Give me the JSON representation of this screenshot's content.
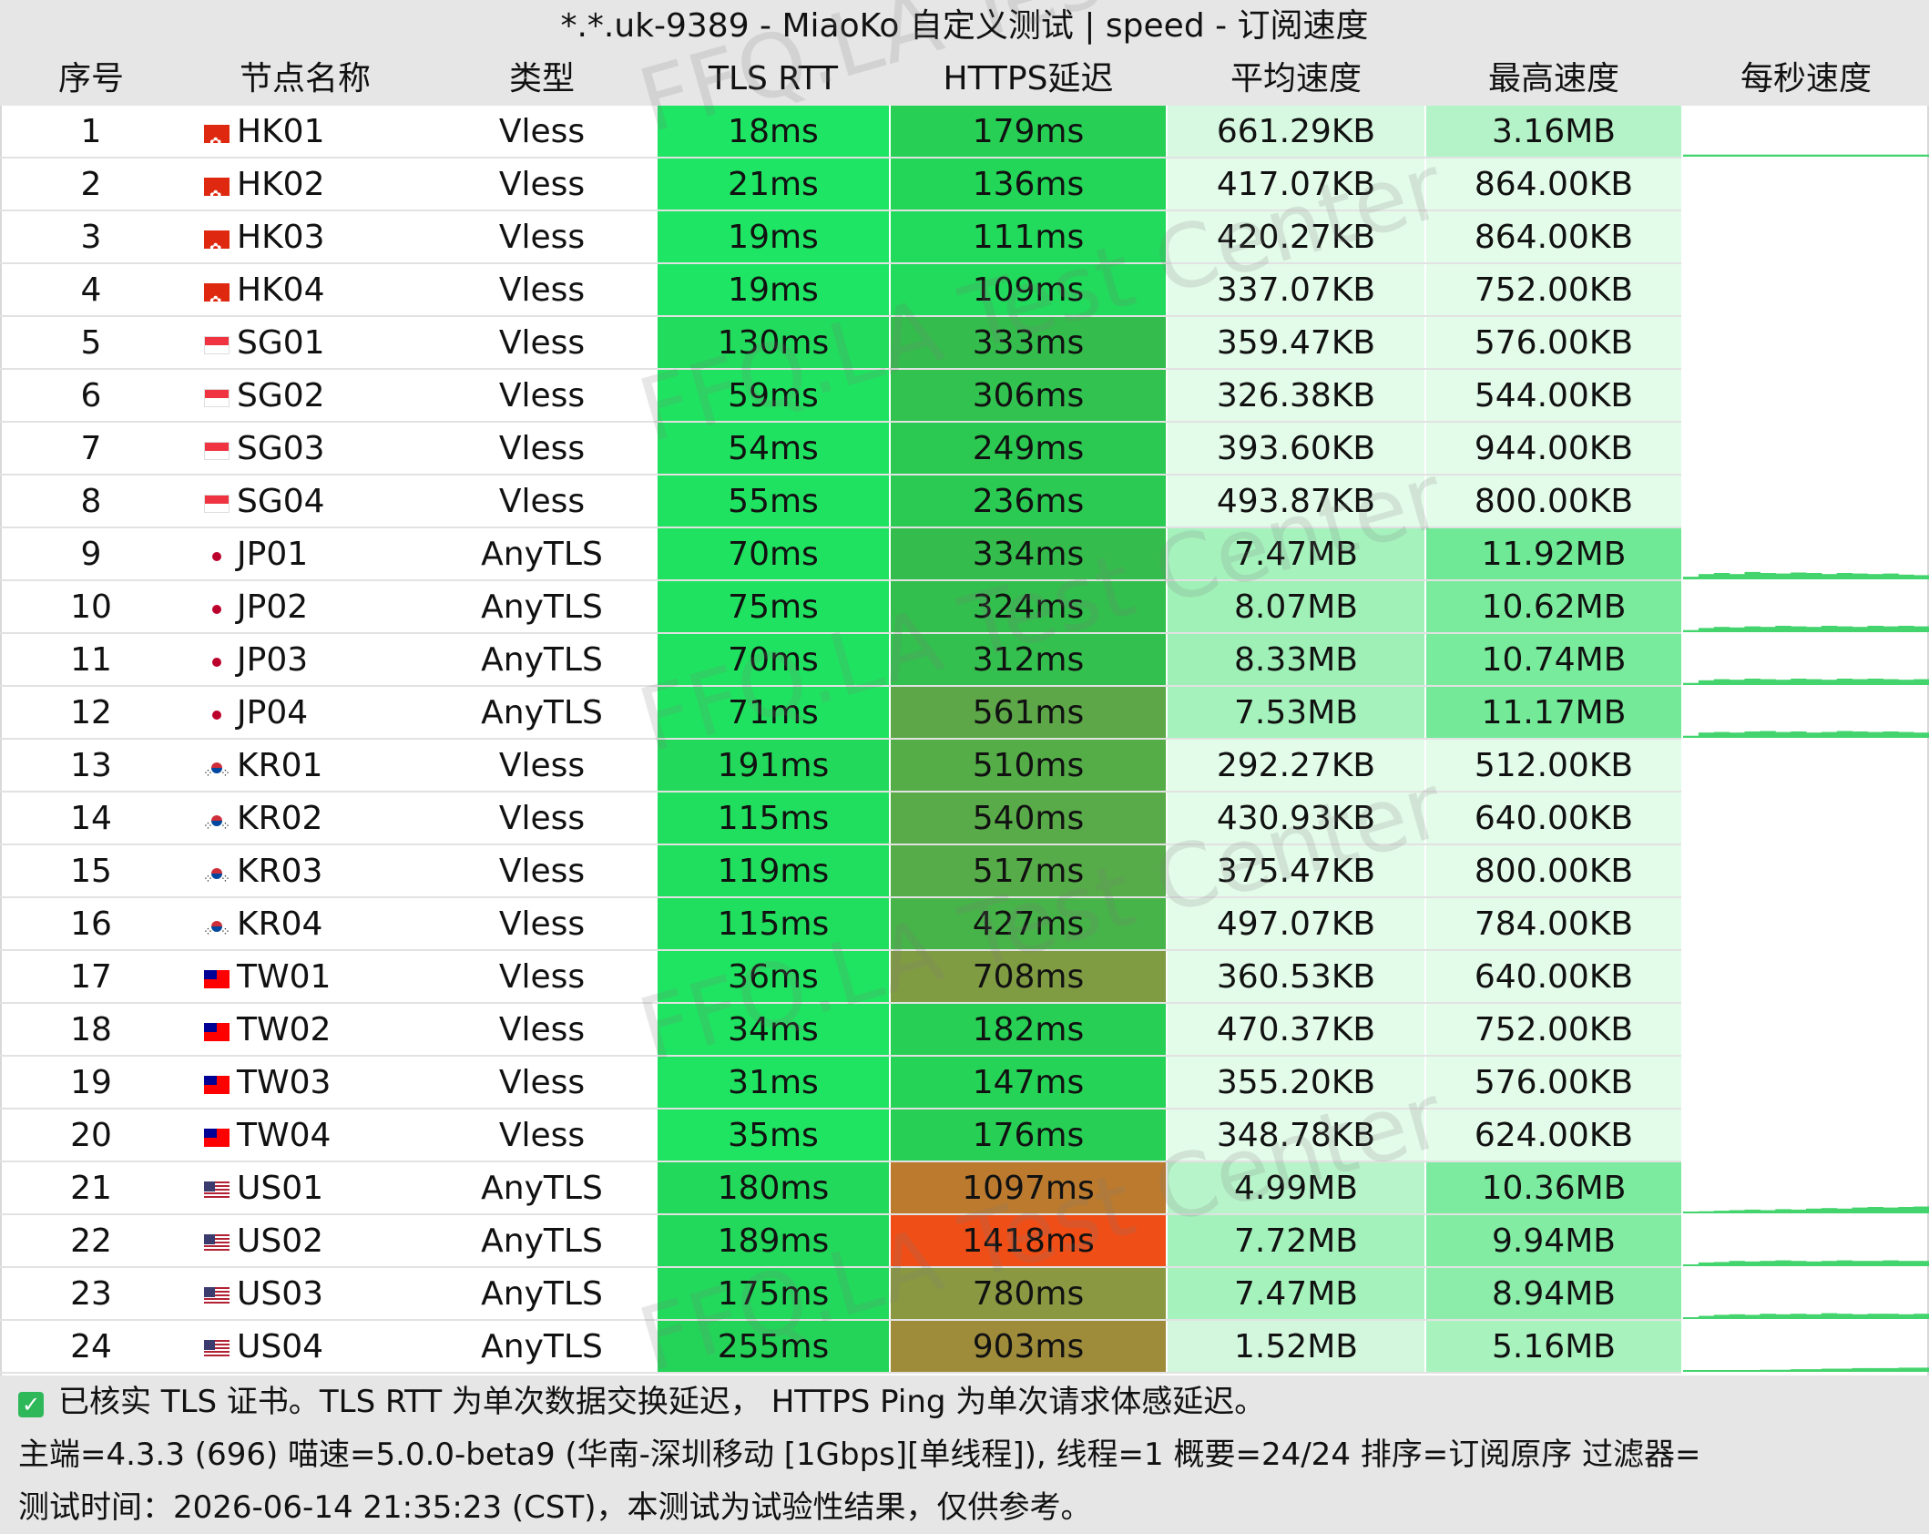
{
  "title": "*.*.uk-9389 - MiaoKo 自定义测试 | speed - 订阅速度",
  "columns": [
    "序号",
    "节点名称",
    "类型",
    "TLS RTT",
    "HTTPS延迟",
    "平均速度",
    "最高速度",
    "每秒速度"
  ],
  "rows": [
    {
      "idx": "1",
      "flag": "hk",
      "name": "HK01",
      "type": "Vless",
      "tls": "18ms",
      "https": "179ms",
      "avg": "661.29KB",
      "max": "3.16MB",
      "tls_color": "#1ee563",
      "https_color": "#27cf55",
      "avg_color": "#d7f8e1",
      "max_color": "#b3f3c7",
      "spark": [
        0.04
      ]
    },
    {
      "idx": "2",
      "flag": "hk",
      "name": "HK02",
      "type": "Vless",
      "tls": "21ms",
      "https": "136ms",
      "avg": "417.07KB",
      "max": "864.00KB",
      "tls_color": "#1ee563",
      "https_color": "#24d658",
      "avg_color": "#e3fbe9",
      "max_color": "#e3fbe9",
      "spark": []
    },
    {
      "idx": "3",
      "flag": "hk",
      "name": "HK03",
      "type": "Vless",
      "tls": "19ms",
      "https": "111ms",
      "avg": "420.27KB",
      "max": "864.00KB",
      "tls_color": "#1ee563",
      "https_color": "#22da5b",
      "avg_color": "#e3fbe9",
      "max_color": "#e3fbe9",
      "spark": []
    },
    {
      "idx": "4",
      "flag": "hk",
      "name": "HK04",
      "type": "Vless",
      "tls": "19ms",
      "https": "109ms",
      "avg": "337.07KB",
      "max": "752.00KB",
      "tls_color": "#1ee563",
      "https_color": "#22da5b",
      "avg_color": "#e3fbe9",
      "max_color": "#e3fbe9",
      "spark": []
    },
    {
      "idx": "5",
      "flag": "sg",
      "name": "SG01",
      "type": "Vless",
      "tls": "130ms",
      "https": "333ms",
      "avg": "359.47KB",
      "max": "576.00KB",
      "tls_color": "#21dc5d",
      "https_color": "#34bd4c",
      "avg_color": "#e3fbe9",
      "max_color": "#e3fbe9",
      "spark": []
    },
    {
      "idx": "6",
      "flag": "sg",
      "name": "SG02",
      "type": "Vless",
      "tls": "59ms",
      "https": "306ms",
      "avg": "326.38KB",
      "max": "544.00KB",
      "tls_color": "#1fe360",
      "https_color": "#32c24f",
      "avg_color": "#e3fbe9",
      "max_color": "#e3fbe9",
      "spark": []
    },
    {
      "idx": "7",
      "flag": "sg",
      "name": "SG03",
      "type": "Vless",
      "tls": "54ms",
      "https": "249ms",
      "avg": "393.60KB",
      "max": "944.00KB",
      "tls_color": "#1fe360",
      "https_color": "#2cc952",
      "avg_color": "#e3fbe9",
      "max_color": "#e3fbe9",
      "spark": []
    },
    {
      "idx": "8",
      "flag": "sg",
      "name": "SG04",
      "type": "Vless",
      "tls": "55ms",
      "https": "236ms",
      "avg": "493.87KB",
      "max": "800.00KB",
      "tls_color": "#1fe360",
      "https_color": "#2bca53",
      "avg_color": "#e3fbe9",
      "max_color": "#e3fbe9",
      "spark": []
    },
    {
      "idx": "9",
      "flag": "jp",
      "name": "JP01",
      "type": "AnyTLS",
      "tls": "70ms",
      "https": "334ms",
      "avg": "7.47MB",
      "max": "11.92MB",
      "tls_color": "#1fe360",
      "https_color": "#34bd4c",
      "avg_color": "#a6f2bd",
      "max_color": "#6fe995",
      "spark": [
        0.05,
        0.1,
        0.12,
        0.1,
        0.14,
        0.12,
        0.11,
        0.13,
        0.12,
        0.1,
        0.12,
        0.11,
        0.1,
        0.11,
        0.09,
        0.08
      ]
    },
    {
      "idx": "10",
      "flag": "jp",
      "name": "JP02",
      "type": "AnyTLS",
      "tls": "75ms",
      "https": "324ms",
      "avg": "8.07MB",
      "max": "10.62MB",
      "tls_color": "#1fe360",
      "https_color": "#33bf4d",
      "avg_color": "#a0f1b8",
      "max_color": "#7aeb9d",
      "spark": [
        0.04,
        0.08,
        0.1,
        0.09,
        0.11,
        0.1,
        0.12,
        0.11,
        0.1,
        0.12,
        0.11,
        0.1,
        0.12,
        0.11,
        0.12,
        0.11
      ]
    },
    {
      "idx": "11",
      "flag": "jp",
      "name": "JP03",
      "type": "AnyTLS",
      "tls": "70ms",
      "https": "312ms",
      "avg": "8.33MB",
      "max": "10.74MB",
      "tls_color": "#1fe360",
      "https_color": "#33c04e",
      "avg_color": "#9ef0b7",
      "max_color": "#79eb9c",
      "spark": [
        0.04,
        0.09,
        0.11,
        0.1,
        0.12,
        0.11,
        0.1,
        0.12,
        0.11,
        0.1,
        0.12,
        0.11,
        0.12,
        0.11,
        0.1,
        0.11
      ]
    },
    {
      "idx": "12",
      "flag": "jp",
      "name": "JP04",
      "type": "AnyTLS",
      "tls": "71ms",
      "https": "561ms",
      "avg": "7.53MB",
      "max": "11.17MB",
      "tls_color": "#1fe360",
      "https_color": "#5da748",
      "avg_color": "#a5f2bd",
      "max_color": "#74ea99",
      "spark": [
        0.04,
        0.1,
        0.11,
        0.1,
        0.12,
        0.13,
        0.11,
        0.12,
        0.1,
        0.11,
        0.13,
        0.12,
        0.11,
        0.12,
        0.11,
        0.1
      ]
    },
    {
      "idx": "13",
      "flag": "kr",
      "name": "KR01",
      "type": "Vless",
      "tls": "191ms",
      "https": "510ms",
      "avg": "292.27KB",
      "max": "512.00KB",
      "tls_color": "#22d95c",
      "https_color": "#55ad48",
      "avg_color": "#e3fbe9",
      "max_color": "#e3fbe9",
      "spark": []
    },
    {
      "idx": "14",
      "flag": "kr",
      "name": "KR02",
      "type": "Vless",
      "tls": "115ms",
      "https": "540ms",
      "avg": "430.93KB",
      "max": "640.00KB",
      "tls_color": "#21df5e",
      "https_color": "#59aa48",
      "avg_color": "#e3fbe9",
      "max_color": "#e3fbe9",
      "spark": []
    },
    {
      "idx": "15",
      "flag": "kr",
      "name": "KR03",
      "type": "Vless",
      "tls": "119ms",
      "https": "517ms",
      "avg": "375.47KB",
      "max": "800.00KB",
      "tls_color": "#21df5e",
      "https_color": "#56ac48",
      "avg_color": "#e3fbe9",
      "max_color": "#e3fbe9",
      "spark": []
    },
    {
      "idx": "16",
      "flag": "kr",
      "name": "KR04",
      "type": "Vless",
      "tls": "115ms",
      "https": "427ms",
      "avg": "497.07KB",
      "max": "784.00KB",
      "tls_color": "#21df5e",
      "https_color": "#47b449",
      "avg_color": "#e3fbe9",
      "max_color": "#e3fbe9",
      "spark": []
    },
    {
      "idx": "17",
      "flag": "tw",
      "name": "TW01",
      "type": "Vless",
      "tls": "36ms",
      "https": "708ms",
      "avg": "360.53KB",
      "max": "640.00KB",
      "tls_color": "#1fe461",
      "https_color": "#809c43",
      "avg_color": "#e3fbe9",
      "max_color": "#e3fbe9",
      "spark": []
    },
    {
      "idx": "18",
      "flag": "tw",
      "name": "TW02",
      "type": "Vless",
      "tls": "34ms",
      "https": "182ms",
      "avg": "470.37KB",
      "max": "752.00KB",
      "tls_color": "#1fe461",
      "https_color": "#27cf55",
      "avg_color": "#e3fbe9",
      "max_color": "#e3fbe9",
      "spark": []
    },
    {
      "idx": "19",
      "flag": "tw",
      "name": "TW03",
      "type": "Vless",
      "tls": "31ms",
      "https": "147ms",
      "avg": "355.20KB",
      "max": "576.00KB",
      "tls_color": "#1fe461",
      "https_color": "#25d457",
      "avg_color": "#e3fbe9",
      "max_color": "#e3fbe9",
      "spark": []
    },
    {
      "idx": "20",
      "flag": "tw",
      "name": "TW04",
      "type": "Vless",
      "tls": "35ms",
      "https": "176ms",
      "avg": "348.78KB",
      "max": "624.00KB",
      "tls_color": "#1fe461",
      "https_color": "#27cf55",
      "avg_color": "#e3fbe9",
      "max_color": "#e3fbe9",
      "spark": []
    },
    {
      "idx": "21",
      "flag": "us",
      "name": "US01",
      "type": "AnyTLS",
      "tls": "180ms",
      "https": "1097ms",
      "avg": "4.99MB",
      "max": "10.36MB",
      "tls_color": "#22d95c",
      "https_color": "#bb7a2e",
      "avg_color": "#b8f4ca",
      "max_color": "#7ceb9f",
      "spark": [
        0.02,
        0.04,
        0.05,
        0.06,
        0.07,
        0.06,
        0.08,
        0.07,
        0.09,
        0.1,
        0.09,
        0.11,
        0.12,
        0.11,
        0.12,
        0.13
      ]
    },
    {
      "idx": "22",
      "flag": "us",
      "name": "US02",
      "type": "AnyTLS",
      "tls": "189ms",
      "https": "1418ms",
      "avg": "7.72MB",
      "max": "9.94MB",
      "tls_color": "#22d95c",
      "https_color": "#f04e17",
      "avg_color": "#a3f1bb",
      "max_color": "#82eca3",
      "spark": [
        0.03,
        0.07,
        0.08,
        0.1,
        0.09,
        0.1,
        0.11,
        0.1,
        0.09,
        0.1,
        0.11,
        0.1,
        0.1,
        0.11,
        0.1,
        0.1
      ]
    },
    {
      "idx": "23",
      "flag": "us",
      "name": "US03",
      "type": "AnyTLS",
      "tls": "175ms",
      "https": "780ms",
      "avg": "7.47MB",
      "max": "8.94MB",
      "tls_color": "#22d95c",
      "https_color": "#8a9841",
      "avg_color": "#a6f2bd",
      "max_color": "#8cedaa",
      "spark": [
        0.03,
        0.06,
        0.08,
        0.09,
        0.08,
        0.1,
        0.09,
        0.1,
        0.09,
        0.11,
        0.1,
        0.09,
        0.1,
        0.1,
        0.09,
        0.1
      ]
    },
    {
      "idx": "24",
      "flag": "us",
      "name": "US04",
      "type": "AnyTLS",
      "tls": "255ms",
      "https": "903ms",
      "avg": "1.52MB",
      "max": "5.16MB",
      "tls_color": "#24d459",
      "https_color": "#9e8c3b",
      "avg_color": "#d2f7dd",
      "max_color": "#a8f2be",
      "spark": [
        0.01,
        0.02,
        0.02,
        0.03,
        0.03,
        0.04,
        0.04,
        0.05,
        0.05,
        0.06,
        0.06,
        0.07,
        0.07,
        0.07,
        0.08,
        0.08
      ]
    }
  ],
  "footer": {
    "line1": "已核实 TLS 证书。TLS RTT 为单次数据交换延迟， HTTPS Ping 为单次请求体感延迟。",
    "line2": "主端=4.3.3 (696) 喵速=5.0.0-beta9 (华南-深圳移动 [1Gbps][单线程]), 线程=1 概要=24/24 排序=订阅原序 过滤器=",
    "line3": "测试时间：2026-06-14 21:35:23 (CST)，本测试为试验性结果，仅供参考。"
  },
  "watermark": "FFQ.LA Test Center",
  "colors": {
    "header_bg": "#e6e6e6",
    "row_sep": "#e2e2e2",
    "spark": "#44d46e"
  }
}
